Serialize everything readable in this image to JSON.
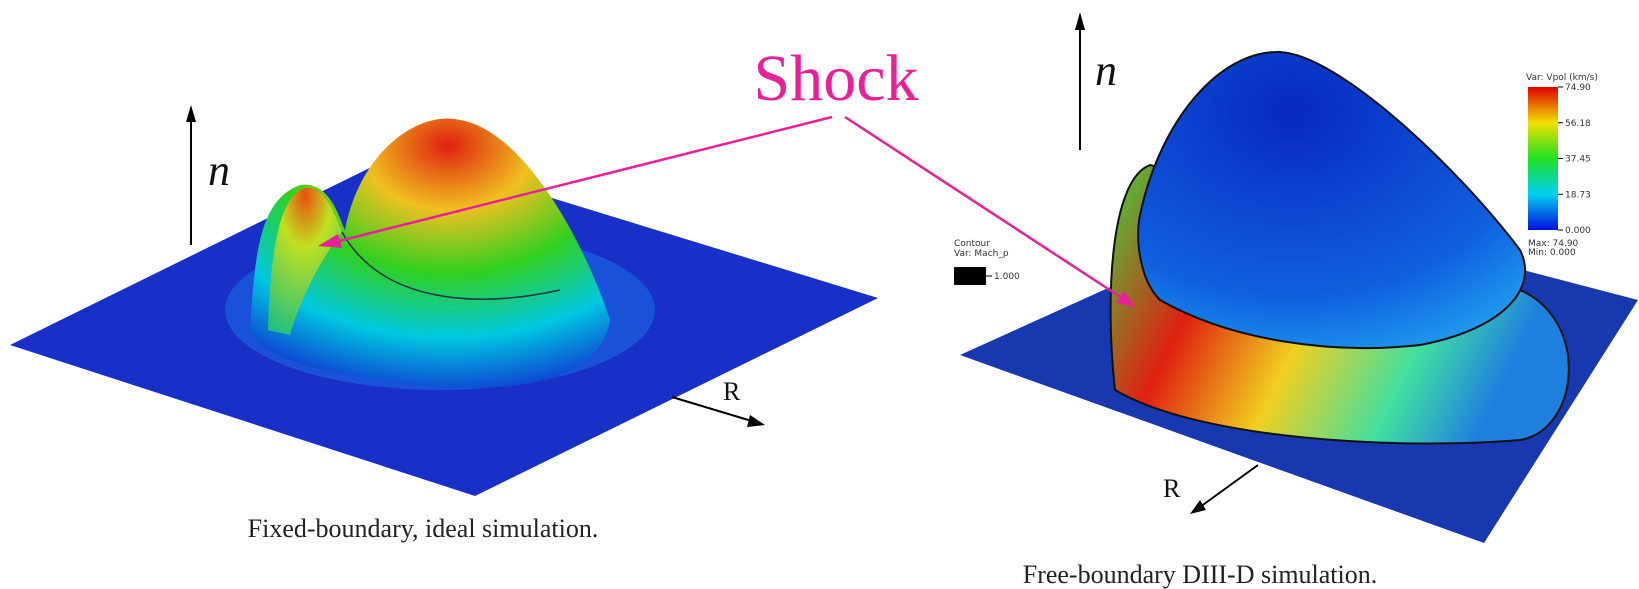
{
  "labels": {
    "shock": "Shock",
    "left_axis_n": "n",
    "left_axis_r": "R",
    "right_axis_n": "n",
    "right_axis_r": "R"
  },
  "captions": {
    "left": "Fixed-boundary, ideal simulation.",
    "right": "Free-boundary DIII-D simulation."
  },
  "colorbar": {
    "title": "Var: Vpol (km/s)",
    "ticks": [
      "74.90",
      "56.18",
      "37.45",
      "18.73",
      "0.000"
    ],
    "max": "Max: 74.90",
    "min": "Min: 0.000"
  },
  "contour_legend": {
    "title": "Contour",
    "var": "Var: Mach_p",
    "level": "1.000"
  }
}
